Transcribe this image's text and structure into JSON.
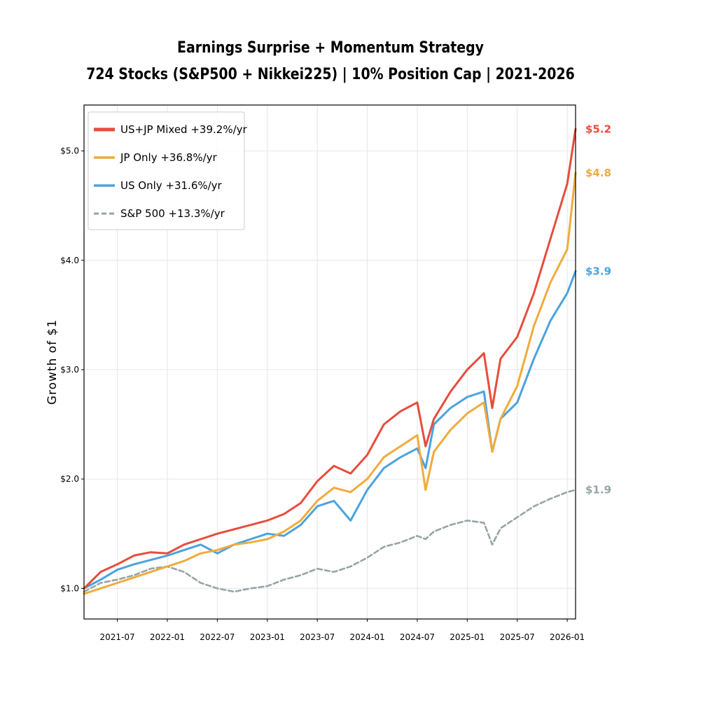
{
  "chart_data": {
    "type": "line",
    "title": "Earnings Surprise + Momentum Strategy",
    "subtitle": "724 Stocks (S&P500 + Nikkei225)  |  10% Position Cap  |  2021-2026",
    "xlabel": "",
    "ylabel": "Growth of $1",
    "x_range": [
      "2021-03",
      "2026-02"
    ],
    "ylim": [
      0.72,
      5.42
    ],
    "x_ticks": [
      "2021-07",
      "2022-01",
      "2022-07",
      "2023-01",
      "2023-07",
      "2024-01",
      "2024-07",
      "2025-01",
      "2025-07",
      "2026-01"
    ],
    "y_ticks": [
      1.0,
      2.0,
      3.0,
      4.0,
      5.0
    ],
    "y_tick_labels": [
      "$1.0",
      "$2.0",
      "$3.0",
      "$4.0",
      "$5.0"
    ],
    "grid": true,
    "legend_position": "top-left",
    "series": [
      {
        "name": "US+JP Mixed  +39.2%/yr",
        "color": "#e74c3c",
        "end_label": "$5.2",
        "points": [
          [
            "2021-03",
            1.0
          ],
          [
            "2021-05",
            1.15
          ],
          [
            "2021-07",
            1.22
          ],
          [
            "2021-09",
            1.3
          ],
          [
            "2021-11",
            1.33
          ],
          [
            "2022-01",
            1.32
          ],
          [
            "2022-03",
            1.4
          ],
          [
            "2022-05",
            1.45
          ],
          [
            "2022-07",
            1.5
          ],
          [
            "2022-09",
            1.54
          ],
          [
            "2022-11",
            1.58
          ],
          [
            "2023-01",
            1.62
          ],
          [
            "2023-03",
            1.68
          ],
          [
            "2023-05",
            1.78
          ],
          [
            "2023-07",
            1.98
          ],
          [
            "2023-09",
            2.12
          ],
          [
            "2023-11",
            2.05
          ],
          [
            "2024-01",
            2.22
          ],
          [
            "2024-03",
            2.5
          ],
          [
            "2024-05",
            2.62
          ],
          [
            "2024-07",
            2.7
          ],
          [
            "2024-08",
            2.3
          ],
          [
            "2024-09",
            2.55
          ],
          [
            "2024-11",
            2.8
          ],
          [
            "2025-01",
            3.0
          ],
          [
            "2025-03",
            3.15
          ],
          [
            "2025-04",
            2.65
          ],
          [
            "2025-05",
            3.1
          ],
          [
            "2025-07",
            3.3
          ],
          [
            "2025-09",
            3.7
          ],
          [
            "2025-11",
            4.2
          ],
          [
            "2026-01",
            4.7
          ],
          [
            "2026-02",
            5.2
          ]
        ]
      },
      {
        "name": "JP Only  +36.8%/yr",
        "color": "#f0ab3c",
        "end_label": "$4.8",
        "points": [
          [
            "2021-03",
            0.95
          ],
          [
            "2021-05",
            1.0
          ],
          [
            "2021-07",
            1.05
          ],
          [
            "2021-09",
            1.1
          ],
          [
            "2021-11",
            1.15
          ],
          [
            "2022-01",
            1.2
          ],
          [
            "2022-03",
            1.25
          ],
          [
            "2022-05",
            1.32
          ],
          [
            "2022-07",
            1.35
          ],
          [
            "2022-09",
            1.4
          ],
          [
            "2022-11",
            1.42
          ],
          [
            "2023-01",
            1.45
          ],
          [
            "2023-03",
            1.52
          ],
          [
            "2023-05",
            1.62
          ],
          [
            "2023-07",
            1.8
          ],
          [
            "2023-09",
            1.92
          ],
          [
            "2023-11",
            1.88
          ],
          [
            "2024-01",
            2.0
          ],
          [
            "2024-03",
            2.2
          ],
          [
            "2024-05",
            2.3
          ],
          [
            "2024-07",
            2.4
          ],
          [
            "2024-08",
            1.9
          ],
          [
            "2024-09",
            2.25
          ],
          [
            "2024-11",
            2.45
          ],
          [
            "2025-01",
            2.6
          ],
          [
            "2025-03",
            2.7
          ],
          [
            "2025-04",
            2.25
          ],
          [
            "2025-05",
            2.55
          ],
          [
            "2025-07",
            2.85
          ],
          [
            "2025-09",
            3.4
          ],
          [
            "2025-11",
            3.8
          ],
          [
            "2026-01",
            4.1
          ],
          [
            "2026-02",
            4.8
          ]
        ]
      },
      {
        "name": "US Only  +31.6%/yr",
        "color": "#4aa3df",
        "end_label": "$3.9",
        "points": [
          [
            "2021-03",
            1.0
          ],
          [
            "2021-05",
            1.08
          ],
          [
            "2021-07",
            1.17
          ],
          [
            "2021-09",
            1.22
          ],
          [
            "2021-11",
            1.26
          ],
          [
            "2022-01",
            1.3
          ],
          [
            "2022-03",
            1.35
          ],
          [
            "2022-05",
            1.4
          ],
          [
            "2022-07",
            1.32
          ],
          [
            "2022-09",
            1.4
          ],
          [
            "2022-11",
            1.45
          ],
          [
            "2023-01",
            1.5
          ],
          [
            "2023-03",
            1.48
          ],
          [
            "2023-05",
            1.58
          ],
          [
            "2023-07",
            1.75
          ],
          [
            "2023-09",
            1.8
          ],
          [
            "2023-11",
            1.62
          ],
          [
            "2024-01",
            1.9
          ],
          [
            "2024-03",
            2.1
          ],
          [
            "2024-05",
            2.2
          ],
          [
            "2024-07",
            2.28
          ],
          [
            "2024-08",
            2.1
          ],
          [
            "2024-09",
            2.5
          ],
          [
            "2024-11",
            2.65
          ],
          [
            "2025-01",
            2.75
          ],
          [
            "2025-03",
            2.8
          ],
          [
            "2025-04",
            2.25
          ],
          [
            "2025-05",
            2.55
          ],
          [
            "2025-07",
            2.7
          ],
          [
            "2025-09",
            3.1
          ],
          [
            "2025-11",
            3.45
          ],
          [
            "2026-01",
            3.7
          ],
          [
            "2026-02",
            3.9
          ]
        ]
      },
      {
        "name": "S&P 500  +13.3%/yr",
        "color": "#95a5a6",
        "dashed": true,
        "end_label": "$1.9",
        "points": [
          [
            "2021-03",
            0.97
          ],
          [
            "2021-05",
            1.05
          ],
          [
            "2021-07",
            1.08
          ],
          [
            "2021-09",
            1.12
          ],
          [
            "2021-11",
            1.18
          ],
          [
            "2022-01",
            1.2
          ],
          [
            "2022-03",
            1.15
          ],
          [
            "2022-05",
            1.05
          ],
          [
            "2022-07",
            1.0
          ],
          [
            "2022-09",
            0.97
          ],
          [
            "2022-11",
            1.0
          ],
          [
            "2023-01",
            1.02
          ],
          [
            "2023-03",
            1.08
          ],
          [
            "2023-05",
            1.12
          ],
          [
            "2023-07",
            1.18
          ],
          [
            "2023-09",
            1.15
          ],
          [
            "2023-11",
            1.2
          ],
          [
            "2024-01",
            1.28
          ],
          [
            "2024-03",
            1.38
          ],
          [
            "2024-05",
            1.42
          ],
          [
            "2024-07",
            1.48
          ],
          [
            "2024-08",
            1.45
          ],
          [
            "2024-09",
            1.52
          ],
          [
            "2024-11",
            1.58
          ],
          [
            "2025-01",
            1.62
          ],
          [
            "2025-03",
            1.6
          ],
          [
            "2025-04",
            1.4
          ],
          [
            "2025-05",
            1.55
          ],
          [
            "2025-07",
            1.65
          ],
          [
            "2025-09",
            1.75
          ],
          [
            "2025-11",
            1.82
          ],
          [
            "2026-01",
            1.88
          ],
          [
            "2026-02",
            1.9
          ]
        ]
      }
    ]
  }
}
